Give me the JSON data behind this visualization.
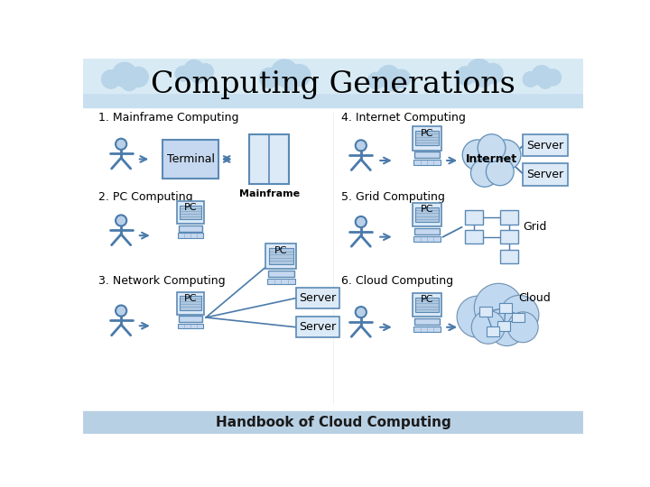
{
  "title": "Computing Generations",
  "footer": "Handbook of Cloud Computing",
  "bg_white": "#ffffff",
  "bg_top_cloud": "#c8dff0",
  "bg_footer": "#b8d0e4",
  "box_fill": "#c5d8f0",
  "box_fill_light": "#dce9f7",
  "box_edge": "#5b8ab5",
  "person_fill": "#b8d0e8",
  "person_edge": "#4a7aaa",
  "arrow_color": "#4a7aaa",
  "line_color": "#4a7aaa",
  "cloud_fill": "#c8dcf0",
  "cloud_edge": "#6090b8",
  "section_labels": [
    "1. Mainframe Computing",
    "2. PC Computing",
    "3. Network Computing",
    "4. Internet Computing",
    "5. Grid Computing",
    "6. Cloud Computing"
  ]
}
